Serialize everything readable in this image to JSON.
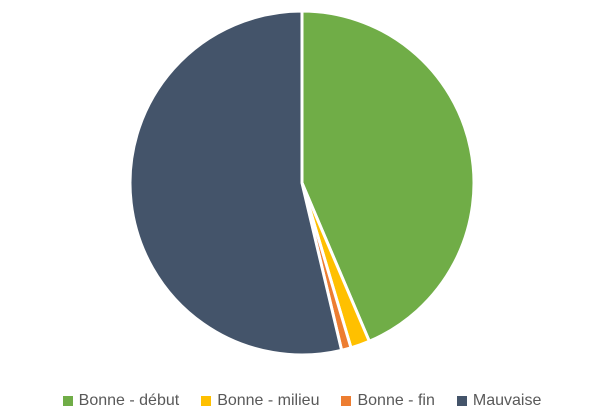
{
  "chart_data": {
    "type": "pie",
    "title": "",
    "categories": [
      "Bonne - début",
      "Bonne - milieu",
      "Bonne - fin",
      "Mauvaise"
    ],
    "values": [
      43.6,
      1.8,
      0.9,
      53.7
    ],
    "unit": "%",
    "start_angle_deg": 0,
    "direction": "clockwise",
    "colors": [
      "#70AD47",
      "#FFC000",
      "#ED7D31",
      "#44546A"
    ],
    "legend_position": "bottom"
  }
}
